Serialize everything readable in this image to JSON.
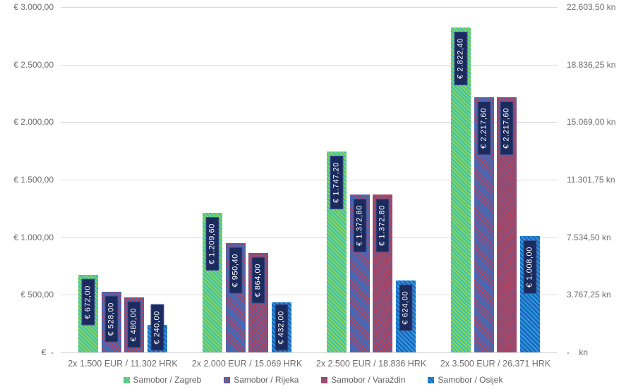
{
  "chart_data": {
    "type": "bar",
    "title": "",
    "categories": [
      "2x 1.500 EUR / 11.302 HRK",
      "2x 2.000 EUR / 15.069 HRK",
      "2x 2.500 EUR / 18.836 HRK",
      "2x 3.500 EUR / 26.371 HRK"
    ],
    "series": [
      {
        "name": "Samobor / Zagreb",
        "pattern": "diagonal-stripes",
        "colors": [
          "#9ed337",
          "#29c3cf"
        ],
        "values": [
          672.0,
          1209.6,
          1747.2,
          2822.4
        ],
        "labels": [
          "€ 672,00",
          "€ 1.209,60",
          "€ 1.747,20",
          "€ 2.822,40"
        ]
      },
      {
        "name": "Samobor / Rijeka",
        "pattern": "diagonal-stripes",
        "colors": [
          "#c03b4c",
          "#3a6ec1"
        ],
        "values": [
          528.0,
          950.4,
          1372.8,
          2217.6
        ],
        "labels": [
          "€ 528,00",
          "€ 950,40",
          "€ 1.372,80",
          "€ 2.217,60"
        ]
      },
      {
        "name": "Samobor / Varaždin",
        "pattern": "checker",
        "colors": [
          "#c03b4c",
          "#3a6ec1"
        ],
        "values": [
          480.0,
          864.0,
          1372.8,
          2217.6
        ],
        "labels": [
          "€ 480,00",
          "€ 864,00",
          "€ 1.372,80",
          "€ 2.217,60"
        ]
      },
      {
        "name": "Samobor / Osijek",
        "pattern": "diagonal-stripes",
        "colors": [
          "#35a4e0",
          "#1b6ac1"
        ],
        "values": [
          240.0,
          432.0,
          624.0,
          1008.0
        ],
        "labels": [
          "€ 240,00",
          "€ 432,00",
          "€ 624,00",
          "€ 1.008,00"
        ]
      }
    ],
    "y_axis_left": {
      "ticks": [
        "€ 3.000,00",
        "€ 2.500,00",
        "€ 2.000,00",
        "€ 1.500,00",
        "€ 1.000,00",
        "€ 500,00",
        "€  -"
      ],
      "max": 3000,
      "min": 0
    },
    "y_axis_right": {
      "ticks": [
        "22.603,50 kn",
        "18.836,25 kn",
        "15.069,00 kn",
        "11.301,75 kn",
        "7.534,50 kn",
        "3.767,25 kn",
        "-    kn"
      ],
      "max": 22603.5,
      "min": 0
    },
    "legend_position": "bottom",
    "grid": true,
    "value_label_box_color": "#1c2b5e",
    "grid_color": "#d9d9d9",
    "axis_text_color": "#6e6e6e"
  }
}
